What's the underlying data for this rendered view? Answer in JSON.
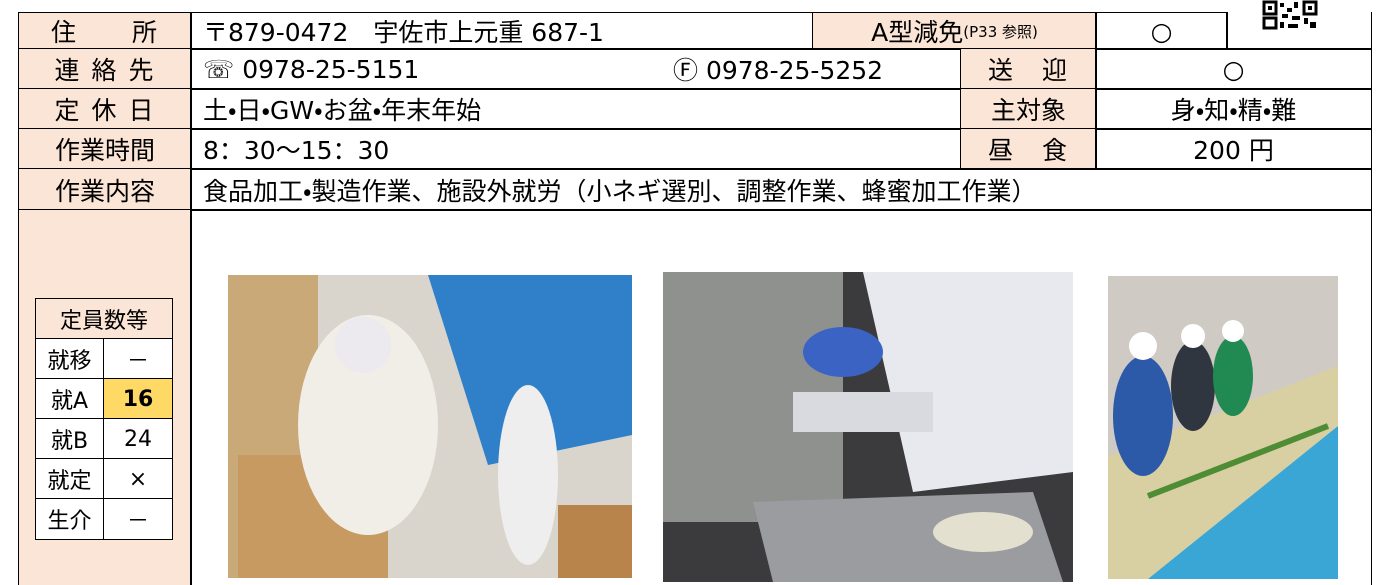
{
  "address": {
    "label": "住　　所",
    "value": "〒879-0472　宇佐市上元重 687-1",
    "reduction_label": "A型減免",
    "reduction_note": "(P33 参照)",
    "reduction_value": "○"
  },
  "contact": {
    "label": "連 絡 先",
    "tel": "☏ 0978-25-5151",
    "fax": "Ⓕ 0978-25-5252",
    "pickup_label": "送　迎",
    "pickup_value": "○"
  },
  "holidays": {
    "label": "定 休 日",
    "value": "土・日・GW・お盆・年末年始",
    "target_label": "主対象",
    "target_value": "身・知・精・難"
  },
  "hours": {
    "label": "作業時間",
    "value": "8：30～15：30",
    "lunch_label": "昼　食",
    "lunch_value": "200 円"
  },
  "work": {
    "label": "作業内容",
    "value": "食品加工・製造作業、施設外就労（小ネギ選別、調整作業、蜂蜜加工作業）"
  },
  "capacity": {
    "title": "定員数等",
    "rows": [
      [
        "就移",
        "－"
      ],
      [
        "就A",
        "16"
      ],
      [
        "就B",
        "24"
      ],
      [
        "就定",
        "×"
      ],
      [
        "生介",
        "－"
      ]
    ]
  }
}
